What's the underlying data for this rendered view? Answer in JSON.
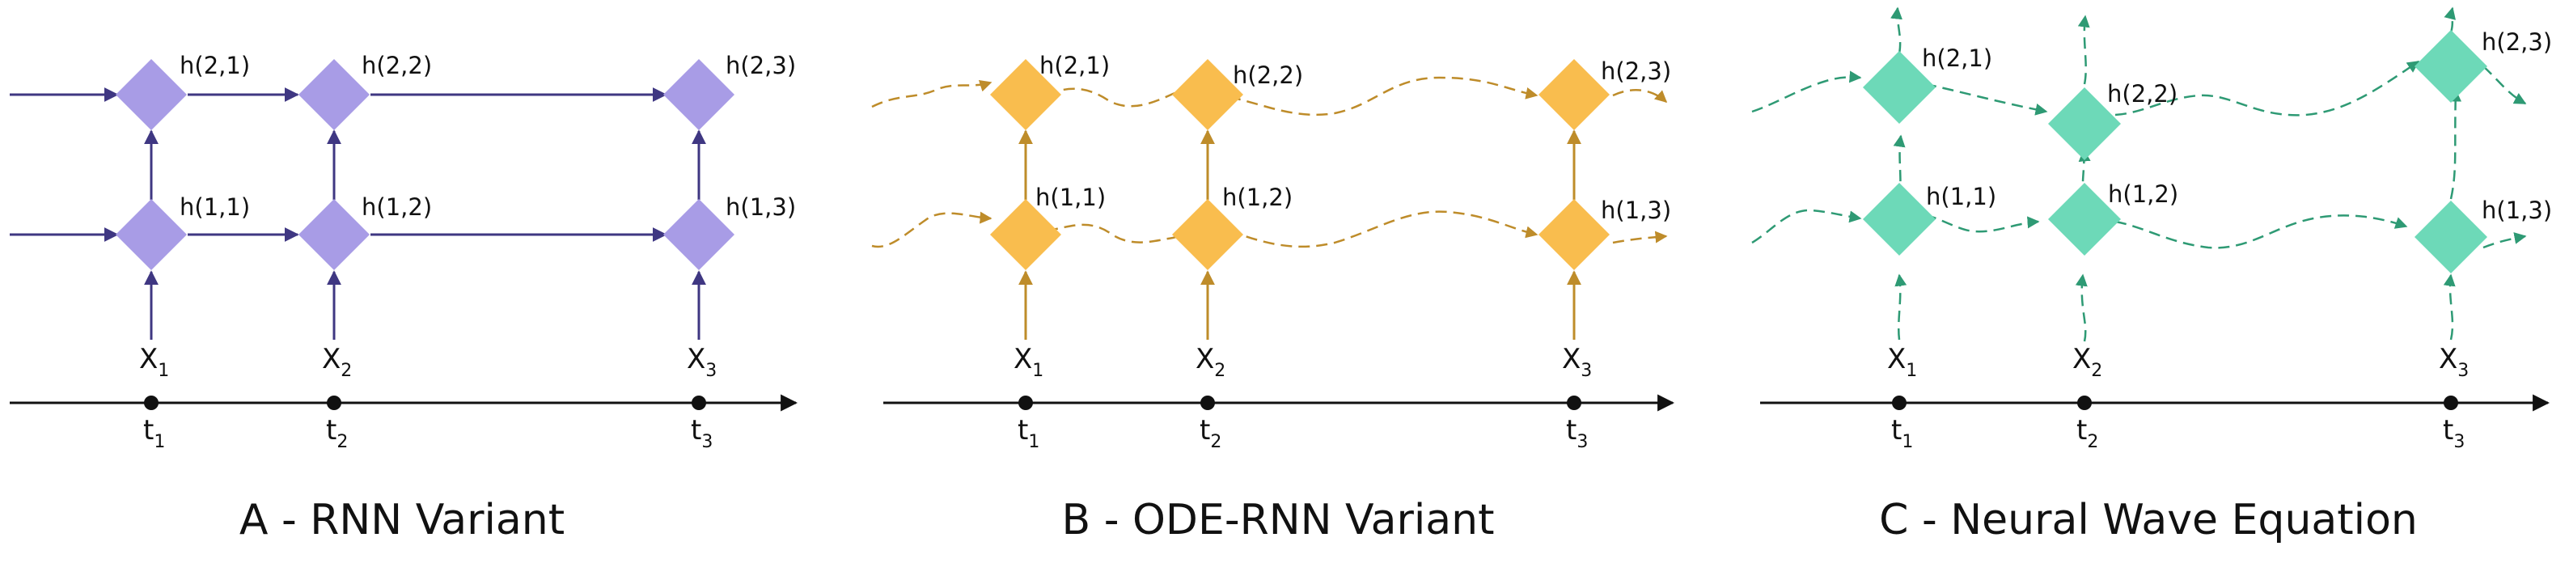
{
  "colors": {
    "rnn_node": "#A89CE6",
    "rnn_edge": "#3F3782",
    "ode_node": "#F9BD4E",
    "ode_edge": "#BE8C2A",
    "wave_node": "#6DD9B8",
    "wave_edge": "#2E9A74",
    "axis": "#111111"
  },
  "panels": [
    {
      "title": "A - RNN Variant",
      "nodes": [
        {
          "label": "h(2,1)"
        },
        {
          "label": "h(2,2)"
        },
        {
          "label": "h(2,3)"
        },
        {
          "label": "h(1,1)"
        },
        {
          "label": "h(1,2)"
        },
        {
          "label": "h(1,3)"
        }
      ],
      "inputs": [
        {
          "name": "X",
          "sub": "1"
        },
        {
          "name": "X",
          "sub": "2"
        },
        {
          "name": "X",
          "sub": "3"
        }
      ],
      "times": [
        {
          "name": "t",
          "sub": "1"
        },
        {
          "name": "t",
          "sub": "2"
        },
        {
          "name": "t",
          "sub": "3"
        }
      ]
    },
    {
      "title": "B - ODE-RNN Variant",
      "nodes": [
        {
          "label": "h(2,1)"
        },
        {
          "label": "h(2,2)"
        },
        {
          "label": "h(2,3)"
        },
        {
          "label": "h(1,1)"
        },
        {
          "label": "h(1,2)"
        },
        {
          "label": "h(1,3)"
        }
      ],
      "inputs": [
        {
          "name": "X",
          "sub": "1"
        },
        {
          "name": "X",
          "sub": "2"
        },
        {
          "name": "X",
          "sub": "3"
        }
      ],
      "times": [
        {
          "name": "t",
          "sub": "1"
        },
        {
          "name": "t",
          "sub": "2"
        },
        {
          "name": "t",
          "sub": "3"
        }
      ]
    },
    {
      "title": "C - Neural Wave Equation",
      "nodes": [
        {
          "label": "h(2,1)"
        },
        {
          "label": "h(2,2)"
        },
        {
          "label": "h(2,3)"
        },
        {
          "label": "h(1,1)"
        },
        {
          "label": "h(1,2)"
        },
        {
          "label": "h(1,3)"
        }
      ],
      "inputs": [
        {
          "name": "X",
          "sub": "1"
        },
        {
          "name": "X",
          "sub": "2"
        },
        {
          "name": "X",
          "sub": "3"
        }
      ],
      "times": [
        {
          "name": "t",
          "sub": "1"
        },
        {
          "name": "t",
          "sub": "2"
        },
        {
          "name": "t",
          "sub": "3"
        }
      ]
    }
  ]
}
